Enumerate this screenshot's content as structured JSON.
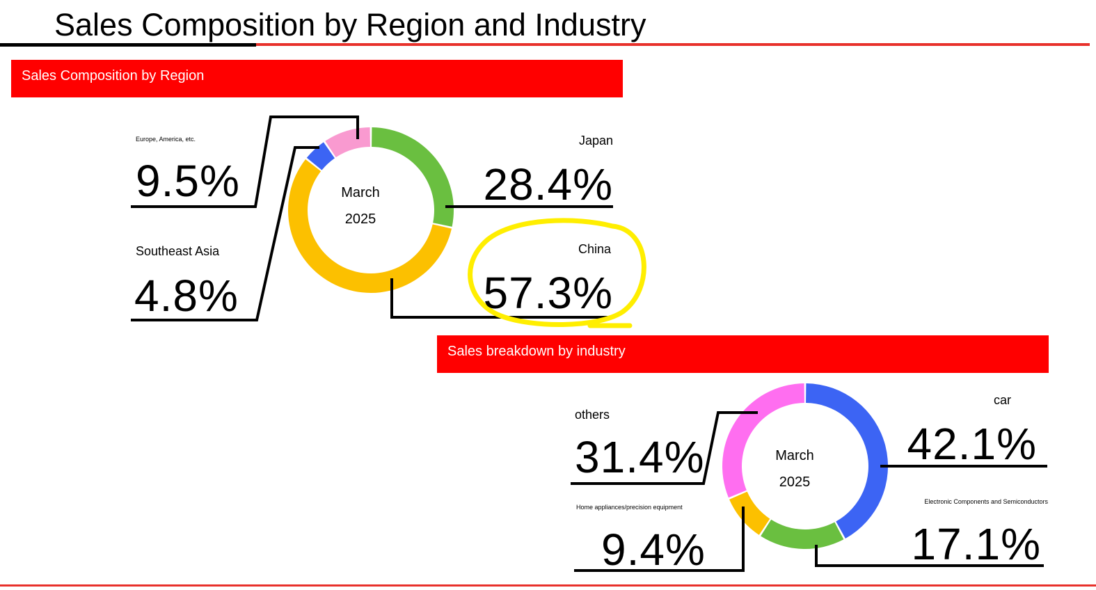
{
  "page_title": "Sales Composition by Region and Industry",
  "colors": {
    "title_rule_dark": "#000000",
    "title_rule_accent": "#e8312b",
    "section_bar": "#ff0000",
    "highlight_circle": "#ffee00"
  },
  "chart_data": [
    {
      "type": "donut",
      "section_title": "Sales Composition by Region",
      "center_label": [
        "March",
        "2025"
      ],
      "series": [
        {
          "name": "Japan",
          "value": 28.4,
          "label": "28.4%",
          "color": "#6abf40"
        },
        {
          "name": "China",
          "value": 57.3,
          "label": "57.3%",
          "color": "#fcc000",
          "highlighted": true
        },
        {
          "name": "Southeast Asia",
          "value": 4.8,
          "label": "4.8%",
          "color": "#3c64f4"
        },
        {
          "name": "Europe, America, etc.",
          "value": 9.5,
          "label": "9.5%",
          "color": "#f99ad0"
        }
      ]
    },
    {
      "type": "donut",
      "section_title": "Sales breakdown by industry",
      "center_label": [
        "March",
        "2025"
      ],
      "series": [
        {
          "name": "car",
          "value": 42.1,
          "label": "42.1%",
          "color": "#3c64f4"
        },
        {
          "name": "Electronic Components and Semiconductors",
          "value": 17.1,
          "label": "17.1%",
          "color": "#6abf40"
        },
        {
          "name": "Home appliances/precision equipment",
          "value": 9.4,
          "label": "9.4%",
          "color": "#fcc000"
        },
        {
          "name": "others",
          "value": 31.4,
          "label": "31.4%",
          "color": "#ff6ef0"
        }
      ]
    }
  ]
}
